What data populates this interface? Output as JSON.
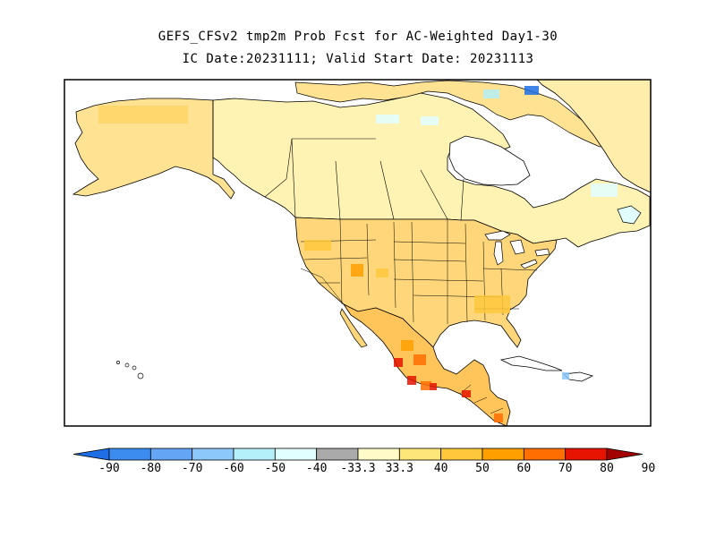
{
  "header": {
    "title_line1": "GEFS_CFSv2 tmp2m Prob Fcst for AC-Weighted Day1-30",
    "title_line2": "IC Date:20231111; Valid Start Date: 20231113"
  },
  "map": {
    "region": "North America",
    "frame_color": "#000000",
    "land_fill_default": "#ffffff",
    "water_color": "#ffffff",
    "boundary_color": "#000000"
  },
  "colorbar": {
    "labels": [
      "-90",
      "-80",
      "-70",
      "-60",
      "-50",
      "-40",
      "-33.3",
      "33.3",
      "40",
      "50",
      "60",
      "70",
      "80",
      "90"
    ],
    "colors": [
      "#1e6ee6",
      "#3c8cf0",
      "#64a5f5",
      "#8cc8fa",
      "#b4f0fa",
      "#e1ffff",
      "#aaaaaa",
      "#fffac8",
      "#ffe678",
      "#ffc83c",
      "#ffa000",
      "#ff6e00",
      "#e61400",
      "#a50000"
    ]
  }
}
